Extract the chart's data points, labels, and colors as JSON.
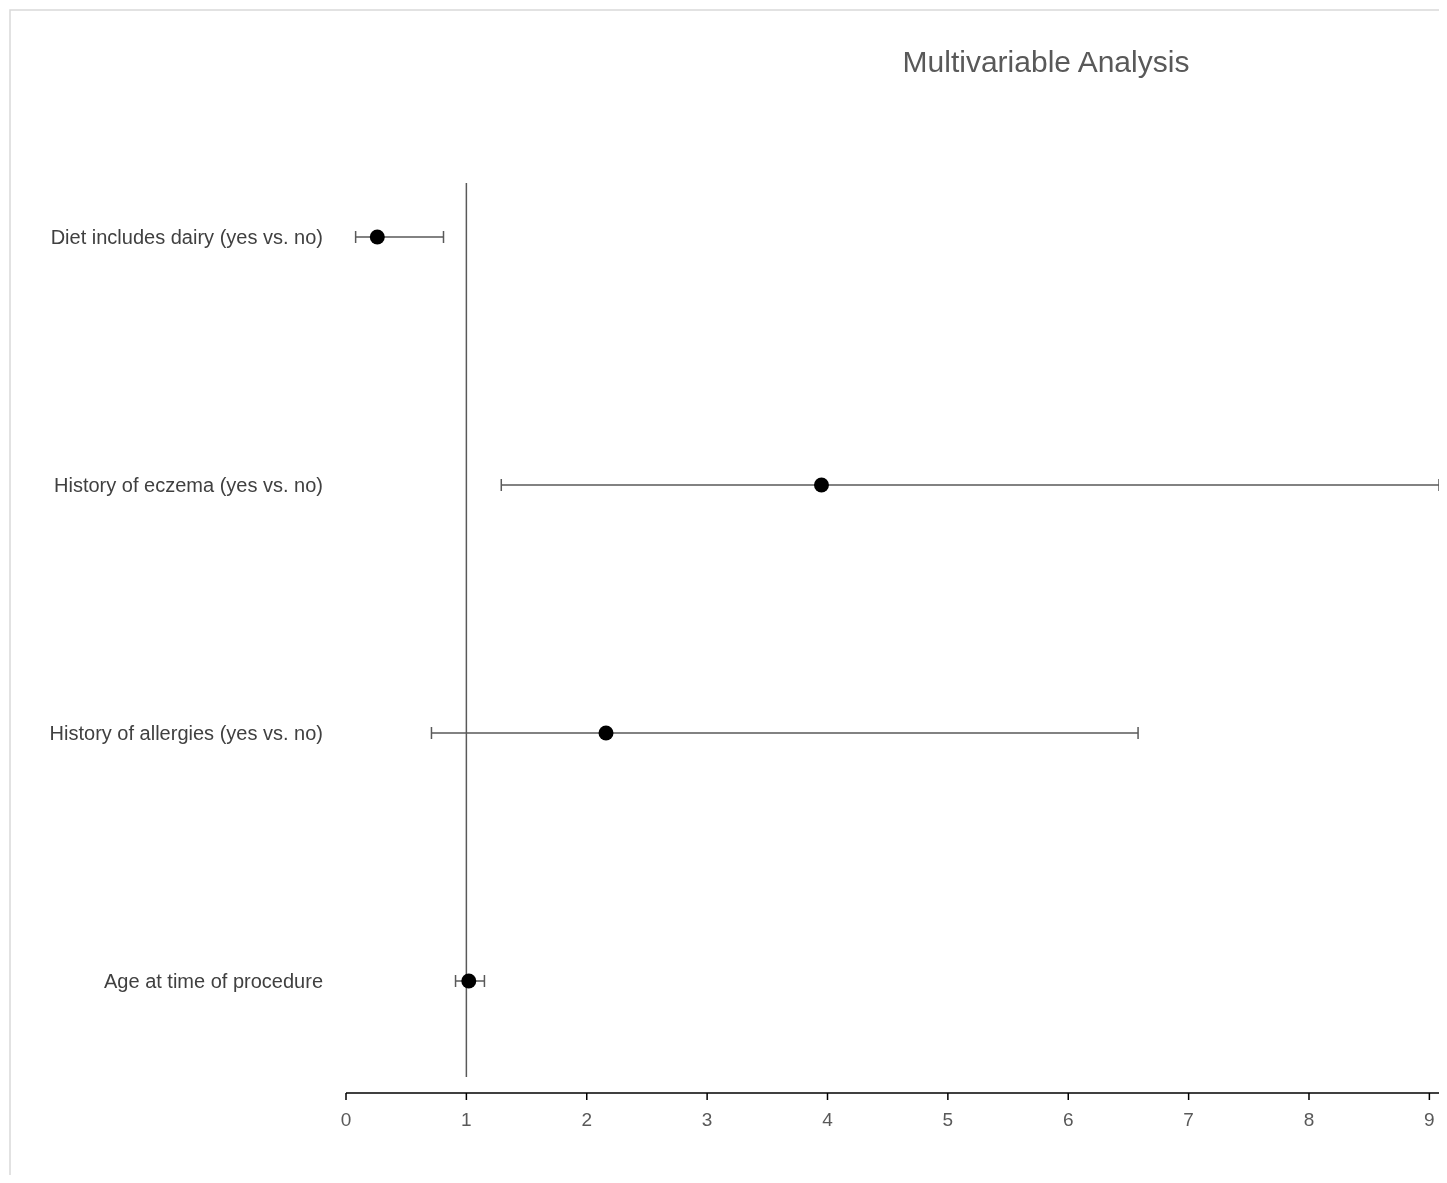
{
  "chart_data": {
    "type": "scatter",
    "orientation": "horizontal",
    "title": "Multivariable Analysis",
    "categories": [
      "Diet includes dairy (yes vs. no)",
      "History of eczema (yes vs. no)",
      "History of allergies (yes vs. no)",
      "Age at time of procedure"
    ],
    "values": [
      0.26,
      3.95,
      2.16,
      1.02
    ],
    "errors": [
      [
        0.08,
        0.81
      ],
      [
        1.29,
        9.08
      ],
      [
        0.71,
        6.58
      ],
      [
        0.91,
        1.15
      ]
    ],
    "color": "#000000",
    "marker": "circle",
    "xlim": [
      0,
      9.08
    ],
    "xticks": [
      0,
      1,
      2,
      3,
      4,
      5,
      6,
      7,
      8,
      9
    ],
    "ref_lines": [
      {
        "axis": "x",
        "value": 1,
        "color": "#595959"
      }
    ],
    "grid": false
  }
}
